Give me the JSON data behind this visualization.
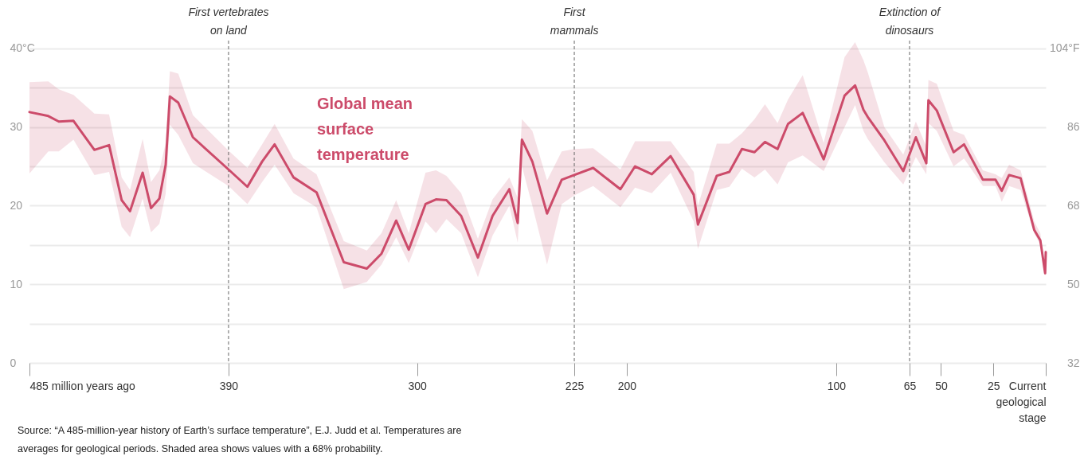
{
  "chart_data": {
    "type": "line",
    "annotations": [
      "Source: “A 485-million-year history of Earth’s surface temperature”, E.J. Judd et al. Temperatures are averages for geological periods. Shaded area shows values with a 68% probability."
    ],
    "xlim": [
      485,
      0
    ],
    "xticks": [
      {
        "value": 485,
        "label": "485 million years ago"
      },
      390,
      300,
      225,
      200,
      100,
      65,
      50,
      25,
      {
        "value": 0,
        "label": "Current geological stage"
      }
    ],
    "ylim": [
      0,
      41
    ],
    "yticks": [
      0,
      {
        "value": 5,
        "label": null
      },
      10,
      {
        "value": 15,
        "label": null
      },
      20,
      {
        "value": 25,
        "label": null
      },
      30,
      {
        "value": 35,
        "label": null
      },
      {
        "value": 40,
        "label": "40°C"
      }
    ],
    "y2lim": [
      32,
      105.8
    ],
    "y2ticks": [
      32,
      50,
      68,
      86,
      {
        "value": 104,
        "label": "104°F"
      }
    ],
    "grid": "y",
    "ref_lines": [
      {
        "axis": "x",
        "value": 390,
        "label": "First vertebrates\non land",
        "color": "#666666",
        "line_style": "dashed"
      },
      {
        "axis": "x",
        "value": 225,
        "label": "First\nmammals",
        "color": "#666666",
        "line_style": "dashed"
      },
      {
        "axis": "x",
        "value": 65,
        "label": "Extinction of\ndinosaurs",
        "color": "#666666",
        "line_style": "dashed"
      }
    ],
    "series": [
      {
        "name": "Global mean surface temperature",
        "color": "#cc4b6a",
        "x": [
          485,
          476,
          471,
          464,
          454,
          447,
          441,
          437,
          431,
          427,
          423,
          420,
          418,
          414,
          407,
          390,
          381,
          374,
          368,
          359,
          348,
          335,
          324,
          317,
          310,
          304,
          296,
          291,
          286,
          279,
          271,
          264,
          256,
          252,
          250,
          245,
          238,
          231,
          225,
          216,
          203,
          196,
          188,
          179,
          168,
          166,
          157,
          151,
          145,
          139,
          134,
          128,
          123,
          116,
          106,
          96,
          91,
          87,
          85,
          77,
          68,
          62,
          57,
          56,
          52,
          44,
          39,
          30,
          24,
          21,
          17.5,
          12,
          5.5,
          2.6,
          0.3,
          0
        ],
        "values": [
          31.9,
          31.4,
          30.7,
          30.8,
          27.1,
          27.7,
          20.7,
          19.3,
          24.2,
          19.7,
          20.9,
          25.2,
          33.9,
          33.1,
          28.7,
          24.6,
          22.4,
          25.6,
          27.8,
          23.6,
          21.7,
          12.8,
          12.0,
          13.9,
          18.1,
          14.4,
          20.2,
          20.8,
          20.7,
          18.7,
          13.4,
          18.7,
          22.1,
          17.8,
          28.4,
          25.6,
          19.0,
          23.3,
          23.9,
          24.8,
          22.1,
          25.0,
          24.0,
          26.3,
          21.4,
          17.6,
          23.8,
          24.3,
          27.2,
          26.8,
          28.1,
          27.2,
          30.4,
          31.8,
          25.9,
          34.0,
          35.3,
          32.2,
          31.3,
          28.3,
          24.4,
          28.7,
          25.4,
          33.4,
          32.1,
          26.8,
          27.8,
          23.3,
          23.3,
          21.9,
          23.9,
          23.5,
          16.9,
          15.6,
          11.4,
          14.1
        ],
        "lower": [
          24.1,
          26.9,
          26.9,
          28.4,
          23.9,
          24.3,
          17.3,
          16.0,
          20.9,
          16.6,
          17.7,
          21.5,
          30.3,
          29.0,
          25.4,
          22.5,
          20.2,
          23.0,
          25.2,
          21.6,
          19.8,
          9.4,
          10.3,
          12.5,
          16.0,
          12.7,
          18.0,
          16.5,
          18.3,
          16.5,
          10.9,
          16.2,
          20.0,
          15.3,
          25.0,
          20.0,
          12.5,
          20.2,
          21.3,
          22.5,
          19.8,
          22.3,
          21.6,
          24.2,
          18.0,
          14.5,
          22.0,
          22.4,
          24.7,
          23.6,
          24.6,
          22.7,
          25.5,
          26.4,
          24.4,
          30.0,
          32.8,
          29.5,
          28.5,
          25.5,
          22.7,
          26.2,
          24.0,
          30.5,
          29.5,
          25.0,
          26.0,
          22.5,
          22.5,
          20.5,
          22.5,
          22.0,
          16.5,
          15.0,
          11.0,
          13.8
        ],
        "upper": [
          35.7,
          35.8,
          34.8,
          34.1,
          31.7,
          31.6,
          23.6,
          22.0,
          28.5,
          23.0,
          24.5,
          28.0,
          37.1,
          36.8,
          31.5,
          27.0,
          24.8,
          27.8,
          30.4,
          26.0,
          24.0,
          15.5,
          14.3,
          16.5,
          20.7,
          16.5,
          24.2,
          24.5,
          23.8,
          21.6,
          15.8,
          20.8,
          23.6,
          21.0,
          31.0,
          29.5,
          23.2,
          26.9,
          27.2,
          27.3,
          24.6,
          28.2,
          28.2,
          28.2,
          24.3,
          20.0,
          27.9,
          27.9,
          29.2,
          31.0,
          32.9,
          30.5,
          33.5,
          36.6,
          28.0,
          38.9,
          40.8,
          38.5,
          37.0,
          30.0,
          26.5,
          30.7,
          27.5,
          36.0,
          35.5,
          29.5,
          29.0,
          24.5,
          24.0,
          23.5,
          25.2,
          24.5,
          18.0,
          16.5,
          11.8,
          14.5
        ]
      }
    ]
  }
}
